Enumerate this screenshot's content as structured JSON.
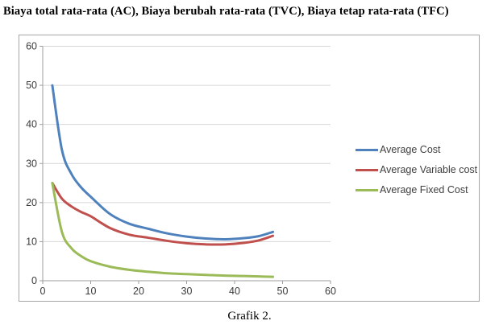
{
  "page": {
    "title": "Biaya total rata-rata (AC), Biaya berubah rata-rata (TVC), Biaya tetap rata-rata (TFC)",
    "caption": "Grafik 2."
  },
  "colors": {
    "series_blue": "#4F81BD",
    "series_red": "#C0504D",
    "series_green": "#9BBB59",
    "gridline": "#d6d6d6",
    "axis": "#9e9e9e",
    "tick_text": "#3a3a3a",
    "frame_border": "#a6a6a6"
  },
  "chart_data": {
    "type": "line",
    "title": "",
    "xlabel": "",
    "ylabel": "",
    "x": [
      2,
      4,
      6,
      8,
      10,
      14,
      18,
      22,
      26,
      30,
      34,
      38,
      42,
      45,
      48
    ],
    "series": [
      {
        "name": "Average Cost",
        "color": "#4F81BD",
        "values": [
          50,
          33.5,
          27.3,
          23.9,
          21.5,
          17.1,
          14.6,
          13.3,
          12.1,
          11.3,
          10.8,
          10.6,
          10.9,
          11.4,
          12.5
        ]
      },
      {
        "name": "Average Variable cost",
        "color": "#C0504D",
        "values": [
          25,
          21,
          19,
          17.6,
          16.5,
          13.5,
          11.8,
          11,
          10.2,
          9.6,
          9.3,
          9.3,
          9.7,
          10.3,
          11.5
        ]
      },
      {
        "name": "Average Fixed Cost",
        "color": "#9BBB59",
        "values": [
          25,
          12.5,
          8.3,
          6.3,
          5,
          3.6,
          2.8,
          2.3,
          1.9,
          1.7,
          1.5,
          1.3,
          1.2,
          1.1,
          1
        ]
      }
    ],
    "xlim": [
      0,
      60
    ],
    "ylim": [
      0,
      60
    ],
    "xticks": [
      0,
      10,
      20,
      30,
      40,
      50,
      60
    ],
    "yticks": [
      0,
      10,
      20,
      30,
      40,
      50,
      60
    ],
    "grid": true,
    "legend_position": "right"
  }
}
